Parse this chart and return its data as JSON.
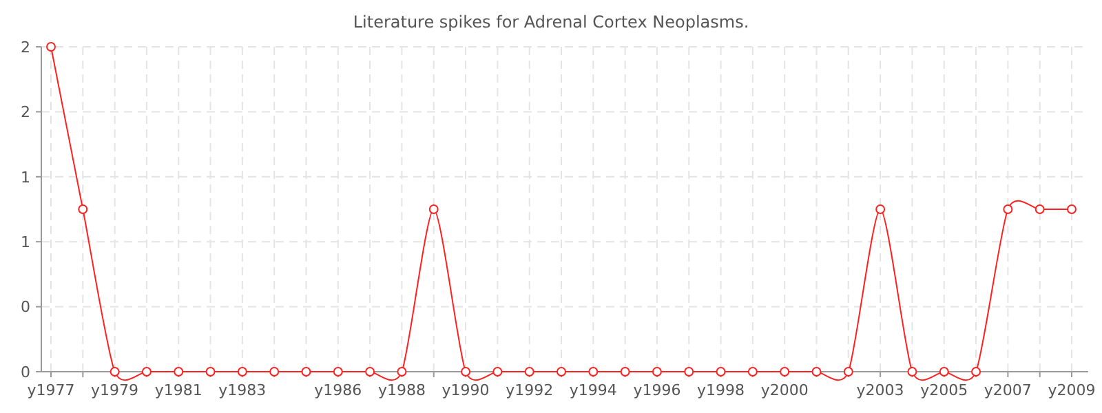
{
  "chart_data": {
    "type": "line",
    "title": "Literature spikes for Adrenal Cortex Neoplasms.",
    "categories": [
      "y1977",
      null,
      "y1979",
      null,
      "y1981",
      null,
      "y1983",
      null,
      null,
      "y1986",
      null,
      "y1988",
      null,
      "y1990",
      null,
      "y1992",
      null,
      "y1994",
      null,
      "y1996",
      null,
      "y1998",
      null,
      "y2000",
      null,
      null,
      "y2003",
      null,
      "y2005",
      null,
      "y2007",
      null,
      "y2009"
    ],
    "series": [
      {
        "color": "#ff2020",
        "values": [
          2,
          1,
          0,
          0,
          0,
          0,
          0,
          0,
          0,
          0,
          0,
          0,
          1,
          0,
          0,
          0,
          0,
          0,
          0,
          0,
          0,
          0,
          0,
          0,
          0,
          0,
          1,
          0,
          0,
          0,
          1,
          1,
          1
        ]
      }
    ],
    "ylim": [
      0,
      2
    ],
    "yticks": [
      {
        "value": 0,
        "label": "0"
      },
      {
        "value": 0.4,
        "label": "0"
      },
      {
        "value": 0.8,
        "label": "1"
      },
      {
        "value": 1.2,
        "label": "1"
      },
      {
        "value": 1.6,
        "label": "2"
      },
      {
        "value": 2,
        "label": "2"
      }
    ],
    "grid": true,
    "marker": "circle"
  }
}
